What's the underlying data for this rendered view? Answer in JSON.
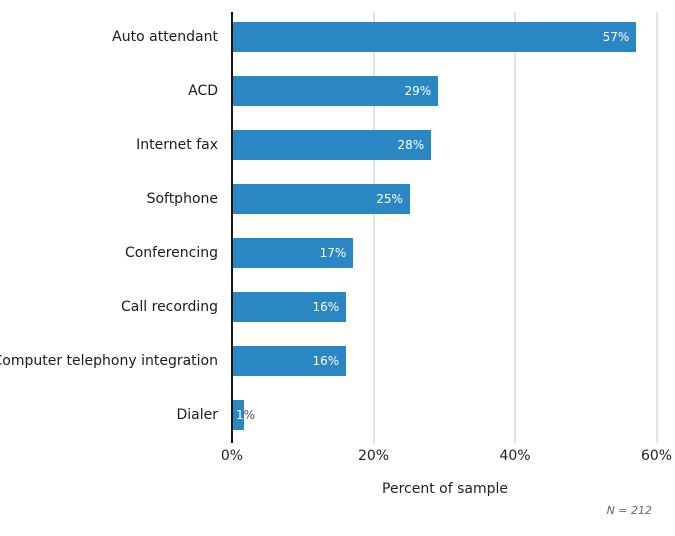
{
  "chart_data": {
    "type": "bar",
    "orientation": "horizontal",
    "categories": [
      "Auto attendant",
      "ACD",
      "Internet fax",
      "Softphone",
      "Conferencing",
      "Call recording",
      "Computer telephony integration",
      "Dialer"
    ],
    "values": [
      57,
      29,
      28,
      25,
      17,
      16,
      16,
      1
    ],
    "value_labels": [
      "57%",
      "29%",
      "28%",
      "25%",
      "17%",
      "16%",
      "16%",
      "1%"
    ],
    "title": "",
    "xlabel": "Percent of sample",
    "ylabel": "",
    "xticks": [
      "0%",
      "20%",
      "40%",
      "60%"
    ],
    "xtick_values": [
      0,
      20,
      40,
      60
    ],
    "xlim": [
      0,
      61
    ],
    "grid": "vertical",
    "legend": "none",
    "note": "N = 212",
    "bar_color": "#2b87c4",
    "value_label_color": "#ffffff"
  }
}
